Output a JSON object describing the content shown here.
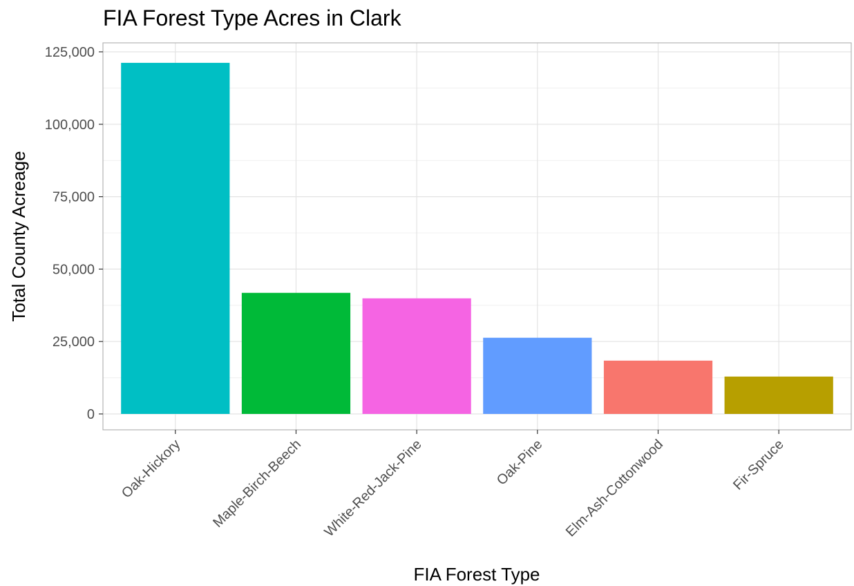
{
  "chart_data": {
    "type": "bar",
    "title": "FIA Forest Type Acres in Clark",
    "xlabel": "FIA Forest Type",
    "ylabel": "Total County Acreage",
    "categories": [
      "Oak-Hickory",
      "Maple-Birch-Beech",
      "White-Red-Jack-Pine",
      "Oak-Pine",
      "Elm-Ash-Cottonwood",
      "Fir-Spruce"
    ],
    "values": [
      121200,
      41800,
      39900,
      26300,
      18400,
      12900
    ],
    "colors": [
      "#00BFC4",
      "#00BA38",
      "#F564E3",
      "#619CFF",
      "#F8766D",
      "#B79F00"
    ],
    "ylim": [
      0,
      125000
    ],
    "yticks": [
      0,
      25000,
      50000,
      75000,
      100000,
      125000
    ],
    "ytick_labels": [
      "0",
      "25,000",
      "50,000",
      "75,000",
      "100,000",
      "125,000"
    ],
    "grid": true,
    "legend": "none"
  }
}
